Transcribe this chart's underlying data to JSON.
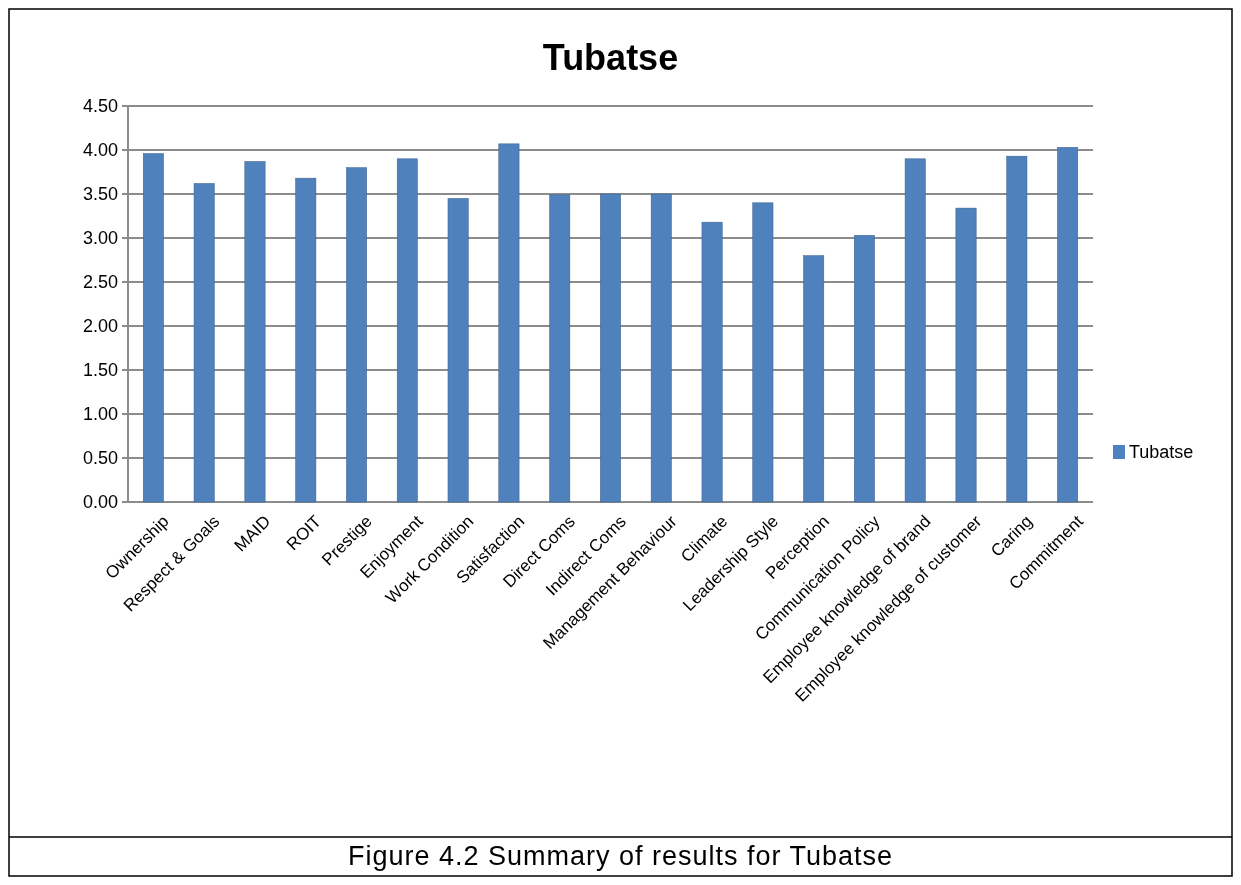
{
  "chart_data": {
    "type": "bar",
    "title": "Tubatse",
    "categories": [
      "Ownership",
      "Respect & Goals",
      "MAID",
      "ROIT",
      "Prestige",
      "Enjoyment",
      "Work Condition",
      "Satisfaction",
      "Direct Coms",
      "Indirect Coms",
      "Management Behaviour",
      "Climate",
      "Leadership Style",
      "Perception",
      "Communication Policy",
      "Employee knowledge of brand",
      "Employee knowledge of customer",
      "Caring",
      "Commitment"
    ],
    "series": [
      {
        "name": "Tubatse",
        "color": "#4f81bd",
        "values": [
          3.96,
          3.62,
          3.87,
          3.68,
          3.8,
          3.9,
          3.45,
          4.07,
          3.49,
          3.5,
          3.5,
          3.18,
          3.4,
          2.8,
          3.03,
          3.9,
          3.34,
          3.93,
          4.03
        ]
      }
    ],
    "ylim": [
      0,
      4.5
    ],
    "yticks": [
      {
        "value": 0,
        "label": "0.00"
      },
      {
        "value": 0.5,
        "label": "0.50"
      },
      {
        "value": 1,
        "label": "1.00"
      },
      {
        "value": 1.5,
        "label": "1.50"
      },
      {
        "value": 2,
        "label": "2.00"
      },
      {
        "value": 2.5,
        "label": "2.50"
      },
      {
        "value": 3,
        "label": "3.00"
      },
      {
        "value": 3.5,
        "label": "3.50"
      },
      {
        "value": 4,
        "label": "4.00"
      },
      {
        "value": 4.5,
        "label": "4.50"
      }
    ],
    "grid": "y",
    "legend": "right",
    "annotations": [
      "Figure 4.2 Summary of results for Tubatse"
    ]
  }
}
